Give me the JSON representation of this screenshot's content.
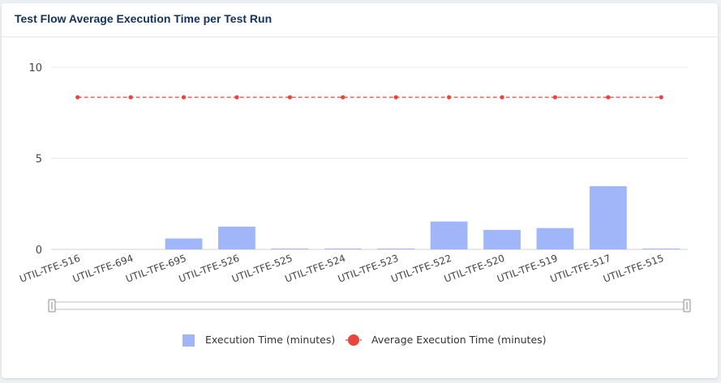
{
  "card": {
    "title": "Test Flow Average Execution Time per Test Run"
  },
  "chart_data": {
    "type": "bar",
    "title": "Test Flow Average Execution Time per Test Run",
    "categories": [
      "UTIL-TFE-516",
      "UTIL-TFE-694",
      "UTIL-TFE-695",
      "UTIL-TFE-526",
      "UTIL-TFE-525",
      "UTIL-TFE-524",
      "UTIL-TFE-523",
      "UTIL-TFE-522",
      "UTIL-TFE-520",
      "UTIL-TFE-519",
      "UTIL-TFE-517",
      "UTIL-TFE-515"
    ],
    "series": [
      {
        "name": "Execution Time (minutes)",
        "type": "bar",
        "color": "#a0b6f9",
        "values": [
          0,
          0,
          0.6,
          1.25,
          0.03,
          0.03,
          0.03,
          1.53,
          1.07,
          1.17,
          3.47,
          0.03
        ]
      },
      {
        "name": "Average Execution Time (minutes)",
        "type": "line",
        "style": "dashed",
        "color": "#e8453c",
        "values": [
          8.35,
          8.35,
          8.35,
          8.35,
          8.35,
          8.35,
          8.35,
          8.35,
          8.35,
          8.35,
          8.35,
          8.35
        ]
      }
    ],
    "y_ticks": [
      0,
      5,
      10
    ],
    "ylim": [
      0,
      10
    ],
    "grid": true,
    "legend_position": "bottom",
    "has_zoom_slider": true
  }
}
